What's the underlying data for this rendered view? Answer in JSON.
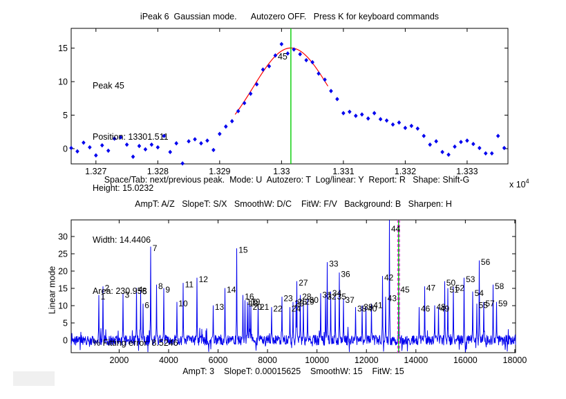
{
  "figure": {
    "background": "#ffffff",
    "leftover_panel_color": "#f0f0f0"
  },
  "colors": {
    "signal": "#0000ee",
    "fit": "#ff0000",
    "cursor_line": "#00cc00",
    "window_line": "#ff00ff",
    "text": "#000000"
  },
  "chart_data": [
    {
      "type": "scatter",
      "title": "iPeak 6  Gaussian mode.      Autozero OFF.   Press K for keyboard commands",
      "xlabel": "Space/Tab: next/previous peak.  Mode: U  Autozero: T  Log/linear: Y  Report: R   Shape: Shift-G",
      "x_scale_prefix": "x 10",
      "x_scale_exponent": "4",
      "xlim": [
        13266,
        13336.6
      ],
      "ylim": [
        -2.27,
        17.95
      ],
      "xticks": [
        {
          "v": 13270,
          "label": "1.327"
        },
        {
          "v": 13280,
          "label": "1.328"
        },
        {
          "v": 13290,
          "label": "1.329"
        },
        {
          "v": 13300,
          "label": "1.33"
        },
        {
          "v": 13310,
          "label": "1.331"
        },
        {
          "v": 13320,
          "label": "1.332"
        },
        {
          "v": 13330,
          "label": "1.333"
        }
      ],
      "yticks": [
        {
          "v": 0,
          "label": "0"
        },
        {
          "v": 5,
          "label": "5"
        },
        {
          "v": 10,
          "label": "10"
        },
        {
          "v": 15,
          "label": "15"
        }
      ],
      "info_lines": [
        "Peak 45",
        "Position: 13301.511",
        "Height: 15.0232",
        "Width: 14.4406",
        "Area: 230.958",
        "% Fitting error: 8.5246"
      ],
      "peak_annotation": {
        "text": "45",
        "x": 13299.4,
        "y": 13.3
      },
      "cursor_x": 13301.511,
      "fit_curve": {
        "shape": "gaussian",
        "center": 13301.511,
        "height": 15.0232,
        "fwhm": 14.4406,
        "x_start": 13292.5,
        "x_end": 13307.5
      },
      "points": [
        [
          13266,
          0.1
        ],
        [
          13267,
          -0.4
        ],
        [
          13268,
          0.9
        ],
        [
          13269,
          0.2
        ],
        [
          13270,
          -1.0
        ],
        [
          13271,
          0.5
        ],
        [
          13272,
          -0.3
        ],
        [
          13273,
          1.5
        ],
        [
          13274,
          1.7
        ],
        [
          13275,
          0.6
        ],
        [
          13276,
          -1.2
        ],
        [
          13277,
          0.4
        ],
        [
          13278,
          -0.1
        ],
        [
          13279,
          0.6
        ],
        [
          13280,
          0.2
        ],
        [
          13281,
          1.9
        ],
        [
          13282,
          -0.5
        ],
        [
          13283,
          0.8
        ],
        [
          13284,
          -2.2
        ],
        [
          13285,
          1.1
        ],
        [
          13286,
          1.4
        ],
        [
          13287,
          0.8
        ],
        [
          13288,
          1.2
        ],
        [
          13289,
          -0.2
        ],
        [
          13290,
          2.2
        ],
        [
          13291,
          3.3
        ],
        [
          13292,
          4.1
        ],
        [
          13293,
          5.6
        ],
        [
          13294,
          6.8
        ],
        [
          13295,
          8.2
        ],
        [
          13296,
          9.6
        ],
        [
          13297,
          11.8
        ],
        [
          13298,
          12.3
        ],
        [
          13299,
          13.9
        ],
        [
          13300,
          15.6
        ],
        [
          13301,
          14.2
        ],
        [
          13302,
          14.8
        ],
        [
          13303,
          14.1
        ],
        [
          13304,
          13.2
        ],
        [
          13305,
          12.9
        ],
        [
          13306,
          11.2
        ],
        [
          13307,
          10.3
        ],
        [
          13308,
          8.6
        ],
        [
          13309,
          7.4
        ],
        [
          13310,
          5.3
        ],
        [
          13311,
          5.5
        ],
        [
          13312,
          4.9
        ],
        [
          13313,
          5.1
        ],
        [
          13314,
          4.5
        ],
        [
          13315,
          5.3
        ],
        [
          13316,
          4.4
        ],
        [
          13317,
          4.2
        ],
        [
          13318,
          3.6
        ],
        [
          13319,
          3.9
        ],
        [
          13320,
          3.1
        ],
        [
          13321,
          3.4
        ],
        [
          13322,
          3.0
        ],
        [
          13323,
          1.9
        ],
        [
          13324,
          0.6
        ],
        [
          13325,
          1.1
        ],
        [
          13326,
          -0.5
        ],
        [
          13327,
          -0.9
        ],
        [
          13328,
          0.3
        ],
        [
          13329,
          1.0
        ],
        [
          13330,
          1.2
        ],
        [
          13331,
          0.7
        ],
        [
          13332,
          0.1
        ],
        [
          13333,
          -0.7
        ],
        [
          13334,
          -0.7
        ],
        [
          13335,
          1.9
        ],
        [
          13336,
          0.1
        ]
      ]
    },
    {
      "type": "line",
      "title": "AmpT: A/Z   SlopeT: S/X   SmoothW: D/C    FitW: F/V   Background: B   Sharpen: H",
      "xlabel": "AmpT: 3    SlopeT: 0.00015625    SmoothW: 15    FitW: 15",
      "ylabel": "Linear mode",
      "xlim": [
        60,
        18030
      ],
      "ylim": [
        -3.6,
        34.8
      ],
      "xticks": [
        {
          "v": 2000,
          "label": "2000"
        },
        {
          "v": 4000,
          "label": "4000"
        },
        {
          "v": 6000,
          "label": "6000"
        },
        {
          "v": 8000,
          "label": "8000"
        },
        {
          "v": 10000,
          "label": "10000"
        },
        {
          "v": 12000,
          "label": "12000"
        },
        {
          "v": 14000,
          "label": "14000"
        },
        {
          "v": 16000,
          "label": "16000"
        },
        {
          "v": 18000,
          "label": "18000"
        }
      ],
      "yticks": [
        {
          "v": 0,
          "label": "0"
        },
        {
          "v": 5,
          "label": "5"
        },
        {
          "v": 10,
          "label": "10"
        },
        {
          "v": 15,
          "label": "15"
        },
        {
          "v": 20,
          "label": "20"
        },
        {
          "v": 25,
          "label": "25"
        },
        {
          "v": 30,
          "label": "30"
        }
      ],
      "noise_band_amplitude": 1.5,
      "cursor_x": 13301.5,
      "window_edges": [
        13266,
        13336
      ],
      "peaks_format": [
        "number",
        "x",
        "height"
      ],
      "peaks": [
        [
          1,
          1180,
          13
        ],
        [
          2,
          1350,
          15.5
        ],
        [
          3,
          2160,
          13.5
        ],
        [
          4,
          2700,
          15
        ],
        [
          5,
          2870,
          14.5
        ],
        [
          6,
          2960,
          10.5
        ],
        [
          7,
          3280,
          27
        ],
        [
          8,
          3510,
          16
        ],
        [
          9,
          3800,
          15
        ],
        [
          10,
          4330,
          11
        ],
        [
          11,
          4590,
          16.5
        ],
        [
          12,
          5150,
          18
        ],
        [
          13,
          5800,
          10
        ],
        [
          14,
          6280,
          15
        ],
        [
          15,
          6760,
          26.5
        ],
        [
          16,
          7010,
          13
        ],
        [
          17,
          7090,
          11.5
        ],
        [
          18,
          7180,
          11
        ],
        [
          19,
          7260,
          11.5
        ],
        [
          20,
          7330,
          10
        ],
        [
          21,
          7620,
          10
        ],
        [
          22,
          8160,
          9.5
        ],
        [
          23,
          8580,
          12.5
        ],
        [
          24,
          8900,
          9.5
        ],
        [
          25,
          9030,
          11
        ],
        [
          26,
          9150,
          11.5
        ],
        [
          27,
          9190,
          17
        ],
        [
          28,
          9330,
          13
        ],
        [
          29,
          9450,
          11.5
        ],
        [
          30,
          9620,
          12
        ],
        [
          31,
          10150,
          13.5
        ],
        [
          32,
          10340,
          13
        ],
        [
          33,
          10420,
          22.5
        ],
        [
          34,
          10550,
          14
        ],
        [
          35,
          10740,
          13
        ],
        [
          36,
          10900,
          19.5
        ],
        [
          37,
          11070,
          12
        ],
        [
          38,
          11560,
          9.5
        ],
        [
          39,
          11820,
          10
        ],
        [
          40,
          11980,
          9.5
        ],
        [
          41,
          12210,
          10.5
        ],
        [
          42,
          12650,
          18.5
        ],
        [
          43,
          12780,
          12.5
        ],
        [
          44,
          12930,
          35
        ],
        [
          45,
          13301.5,
          15
        ],
        [
          46,
          14130,
          9.5
        ],
        [
          47,
          14350,
          15.5
        ],
        [
          48,
          14760,
          10
        ],
        [
          49,
          14910,
          9.5
        ],
        [
          50,
          15160,
          17
        ],
        [
          51,
          15290,
          15
        ],
        [
          52,
          15520,
          15.5
        ],
        [
          53,
          15950,
          18
        ],
        [
          54,
          16300,
          14
        ],
        [
          55,
          16470,
          10.5
        ],
        [
          56,
          16560,
          23
        ],
        [
          57,
          16740,
          11
        ],
        [
          58,
          17120,
          16
        ],
        [
          59,
          17260,
          11
        ]
      ]
    }
  ]
}
